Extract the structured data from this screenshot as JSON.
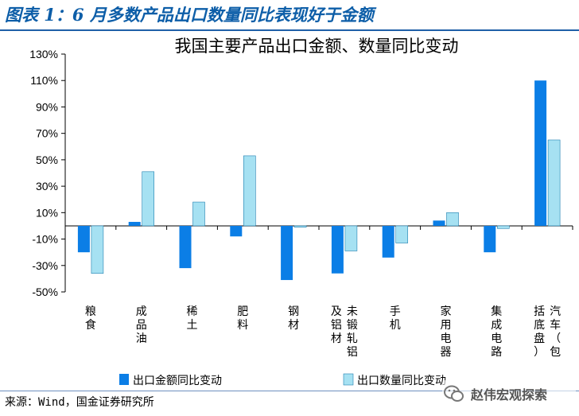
{
  "header": {
    "title": "图表 1：6 月多数产品出口数量同比表现好于金额"
  },
  "footer": {
    "source": "来源：Wind，国金证券研究所",
    "watermark": "赵伟宏观探索"
  },
  "colors": {
    "amount": "#0b7ee6",
    "quantity": "#a6e1f2",
    "quantity_stroke": "#1f7fb0",
    "title": "#0d5ea8"
  },
  "icons": {
    "watermark": "wechat-icon"
  },
  "chart_data": {
    "type": "bar",
    "title": "我国主要产品出口金额、数量同比变动",
    "xlabel": "",
    "ylabel": "",
    "ylim": [
      -50,
      130
    ],
    "yticks": [
      130,
      110,
      90,
      70,
      50,
      30,
      10,
      -10,
      -30,
      -50
    ],
    "ytick_labels": [
      "130%",
      "110%",
      "90%",
      "70%",
      "50%",
      "30%",
      "10%",
      "-10%",
      "-30%",
      "-50%"
    ],
    "categories": [
      [
        "粮",
        "食"
      ],
      [
        "成",
        "品",
        "油"
      ],
      [
        "稀",
        "土"
      ],
      [
        "肥",
        "料"
      ],
      [
        "钢",
        "材"
      ],
      [
        "未",
        "锻",
        "轧",
        "铝",
        "及",
        "铝",
        "材"
      ],
      [
        "手",
        "机"
      ],
      [
        "家",
        "用",
        "电",
        "器"
      ],
      [
        "集",
        "成",
        "电",
        "路"
      ],
      [
        "汽",
        "车",
        "（",
        "包",
        "括",
        "底",
        "盘",
        "）"
      ]
    ],
    "series": [
      {
        "name": "出口金额同比变动",
        "values": [
          -20,
          3,
          -32,
          -8,
          -41,
          -36,
          -24,
          4,
          -20,
          110
        ]
      },
      {
        "name": "出口数量同比变动",
        "values": [
          -36,
          41,
          18,
          53,
          -1,
          -19,
          -13,
          10,
          -2,
          65
        ]
      }
    ],
    "legend_position": "bottom",
    "grid": false
  }
}
